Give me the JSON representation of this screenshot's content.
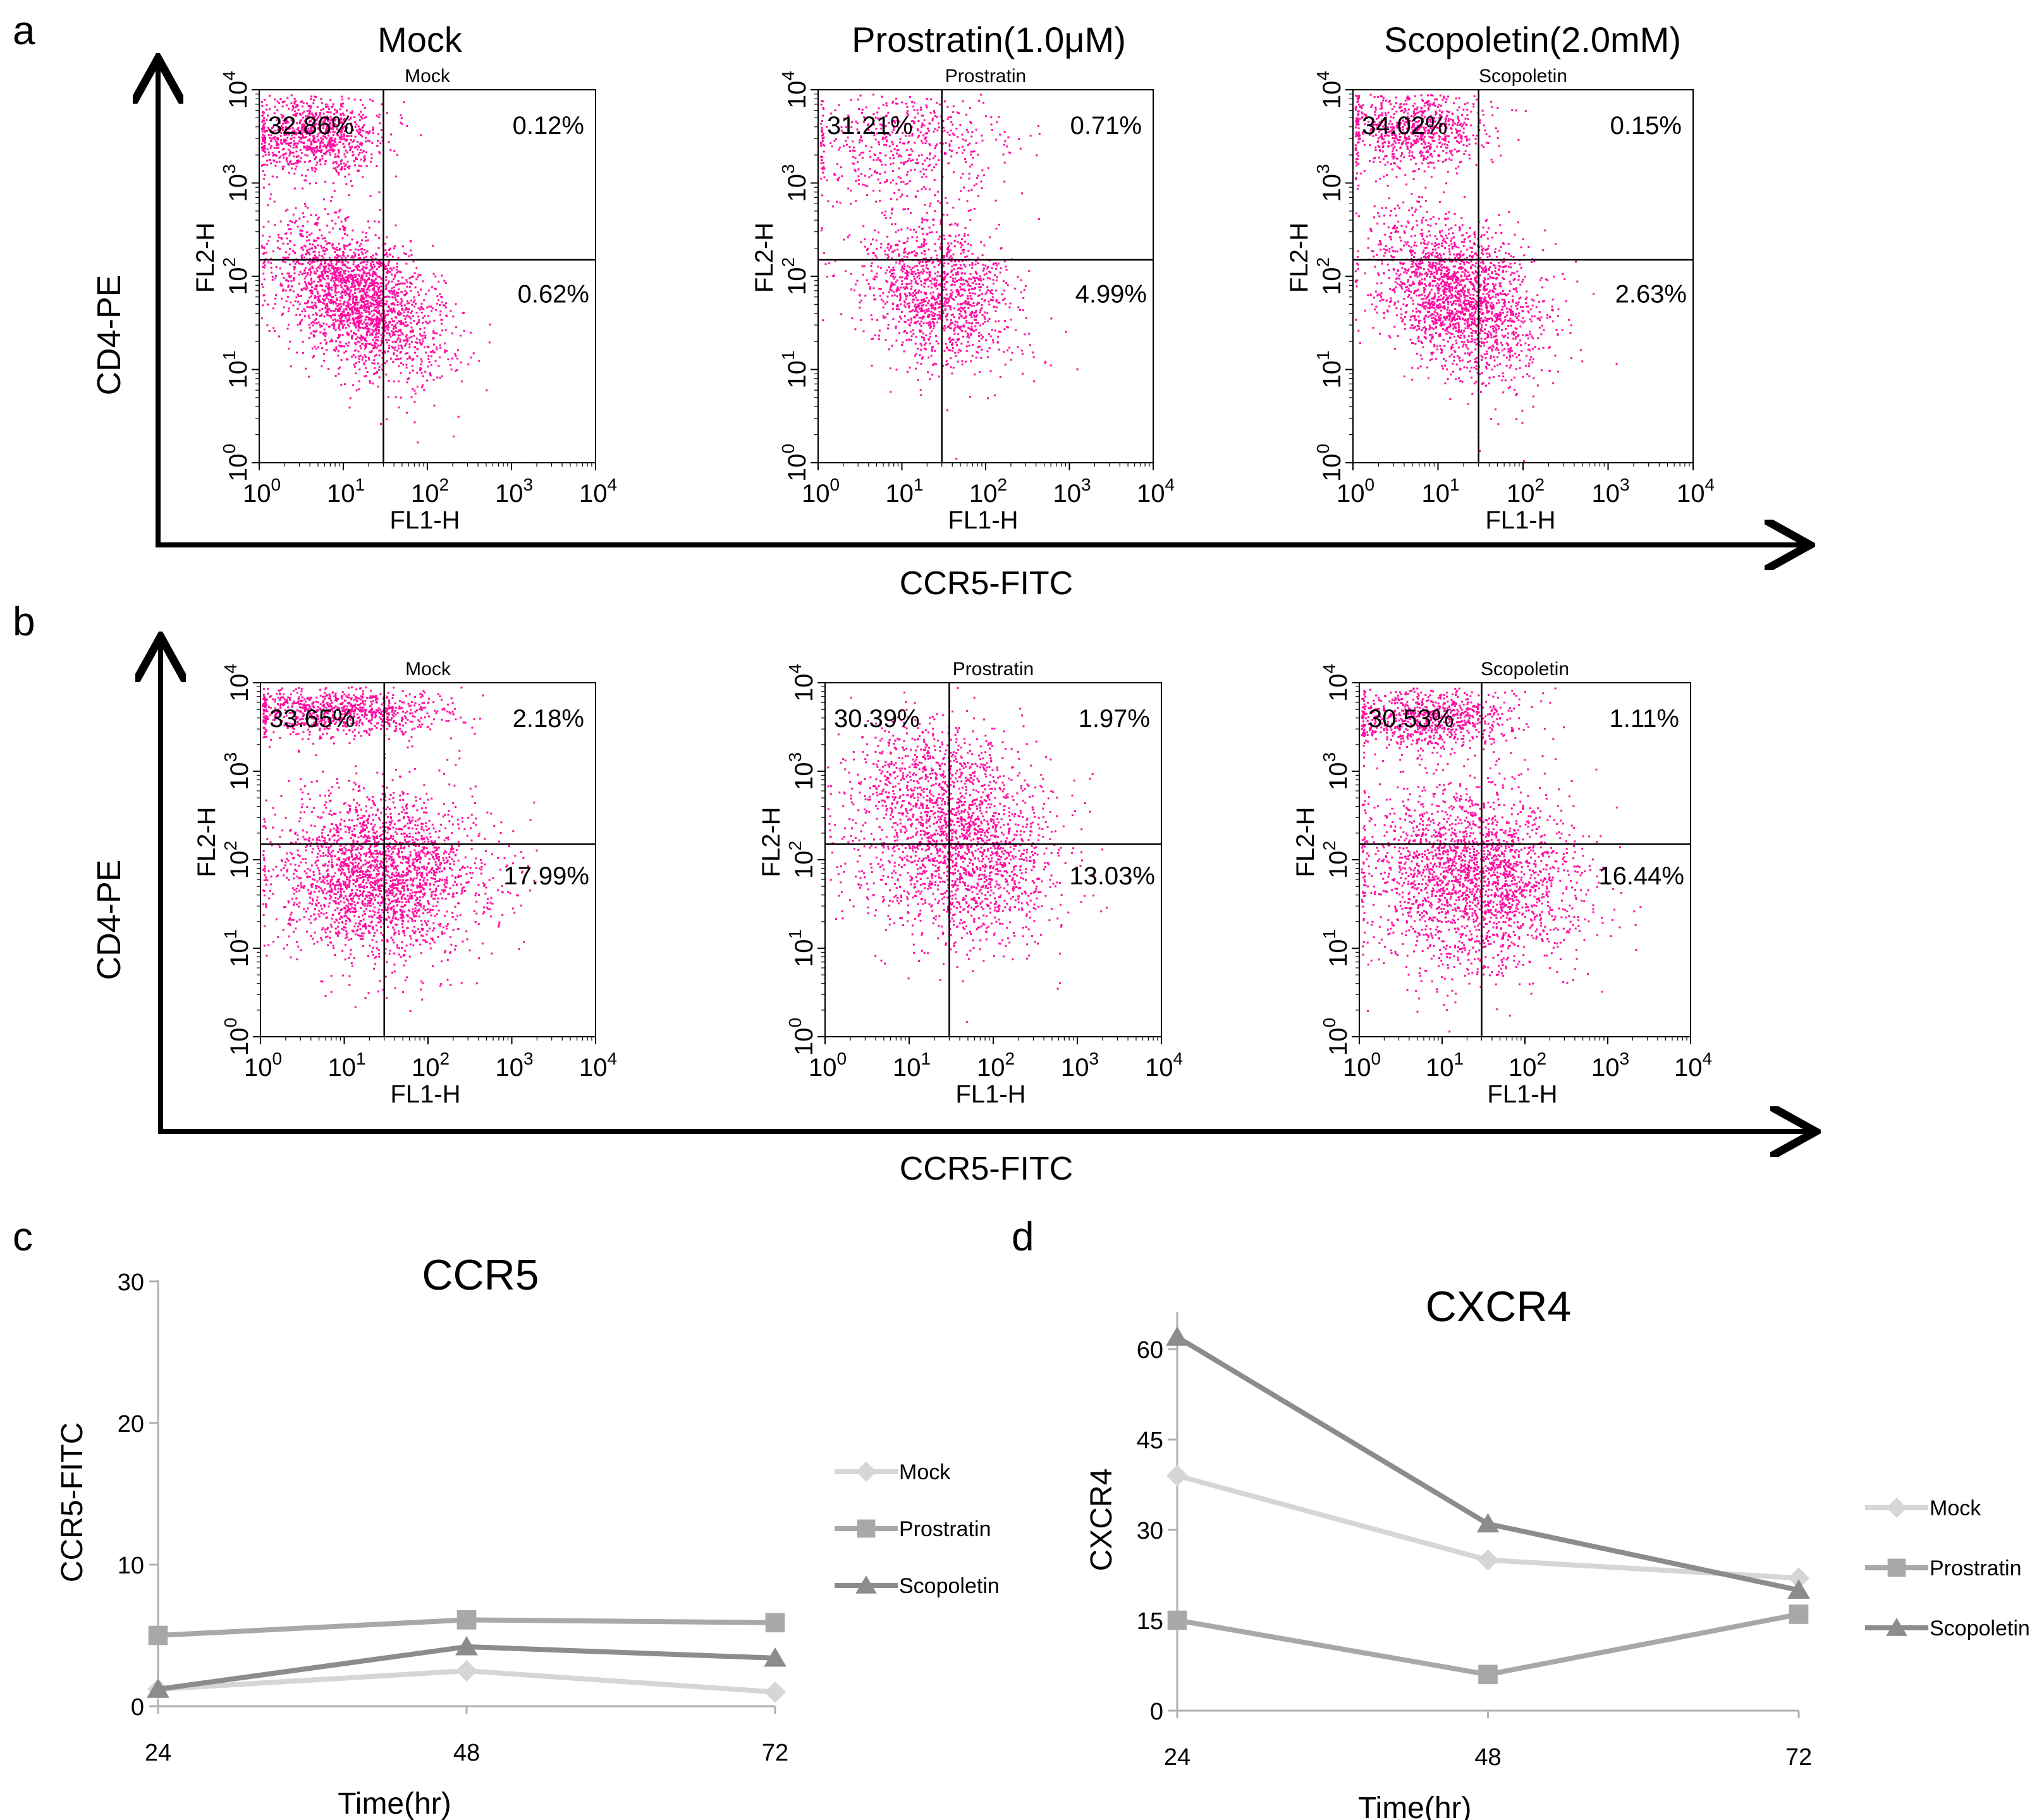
{
  "figure": {
    "panel_letters": [
      "a",
      "b",
      "c",
      "d"
    ],
    "column_titles": [
      "Mock",
      "Prostratin(1.0μM)",
      "Scopoletin(2.0mM)"
    ],
    "flow_y_axis_label": "CD4-PE",
    "flow_x_axis_label": "CCR5-FITC",
    "dot_color": "#ff0aa0"
  },
  "chart_data": [
    {
      "type": "scatter",
      "panel": "a",
      "subplot_title": "Mock",
      "xlabel": "FL1-H",
      "ylabel": "FL2-H",
      "scale": "log",
      "xlim": [
        1,
        10000
      ],
      "ylim": [
        1,
        10000
      ],
      "gate": {
        "x": 30,
        "y": 150
      },
      "quadrant_percent": {
        "upper_left": "32.86%",
        "upper_right": "0.12%",
        "lower_right": "0.62%"
      }
    },
    {
      "type": "scatter",
      "panel": "a",
      "subplot_title": "Prostratin",
      "xlabel": "FL1-H",
      "ylabel": "FL2-H",
      "scale": "log",
      "xlim": [
        1,
        10000
      ],
      "ylim": [
        1,
        10000
      ],
      "gate": {
        "x": 30,
        "y": 150
      },
      "quadrant_percent": {
        "upper_left": "31.21%",
        "upper_right": "0.71%",
        "lower_right": "4.99%"
      }
    },
    {
      "type": "scatter",
      "panel": "a",
      "subplot_title": "Scopoletin",
      "xlabel": "FL1-H",
      "ylabel": "FL2-H",
      "scale": "log",
      "xlim": [
        1,
        10000
      ],
      "ylim": [
        1,
        10000
      ],
      "gate": {
        "x": 30,
        "y": 150
      },
      "quadrant_percent": {
        "upper_left": "34.02%",
        "upper_right": "0.15%",
        "lower_right": "2.63%"
      }
    },
    {
      "type": "scatter",
      "panel": "b",
      "subplot_title": "Mock",
      "xlabel": "FL1-H",
      "ylabel": "FL2-H",
      "scale": "log",
      "xlim": [
        1,
        10000
      ],
      "ylim": [
        1,
        10000
      ],
      "gate": {
        "x": 30,
        "y": 150
      },
      "quadrant_percent": {
        "upper_left": "33.65%",
        "upper_right": "2.18%",
        "lower_right": "17.99%"
      }
    },
    {
      "type": "scatter",
      "panel": "b",
      "subplot_title": "Prostratin",
      "xlabel": "FL1-H",
      "ylabel": "FL2-H",
      "scale": "log",
      "xlim": [
        1,
        10000
      ],
      "ylim": [
        1,
        10000
      ],
      "gate": {
        "x": 30,
        "y": 150
      },
      "quadrant_percent": {
        "upper_left": "30.39%",
        "upper_right": "1.97%",
        "lower_right": "13.03%"
      }
    },
    {
      "type": "scatter",
      "panel": "b",
      "subplot_title": "Scopoletin",
      "xlabel": "FL1-H",
      "ylabel": "FL2-H",
      "scale": "log",
      "xlim": [
        1,
        10000
      ],
      "ylim": [
        1,
        10000
      ],
      "gate": {
        "x": 30,
        "y": 150
      },
      "quadrant_percent": {
        "upper_left": "30.53%",
        "upper_right": "1.11%",
        "lower_right": "16.44%"
      }
    },
    {
      "type": "line",
      "panel": "c",
      "title": "CCR5",
      "xlabel": "Time(hr)",
      "ylabel": "CCR5-FITC",
      "x": [
        24,
        48,
        72
      ],
      "ylim": [
        0,
        30
      ],
      "yticks": [
        0,
        10,
        20,
        30
      ],
      "series": [
        {
          "name": "Mock",
          "marker": "diamond",
          "color": "#d6d6d6",
          "values": [
            1.2,
            2.5,
            1.0
          ]
        },
        {
          "name": "Prostratin",
          "marker": "square",
          "color": "#a8a8a8",
          "values": [
            5.0,
            6.1,
            5.9
          ]
        },
        {
          "name": "Scopoletin",
          "marker": "triangle",
          "color": "#8c8c8c",
          "values": [
            1.2,
            4.2,
            3.4
          ]
        }
      ]
    },
    {
      "type": "line",
      "panel": "d",
      "title": "CXCR4",
      "xlabel": "Time(hr)",
      "ylabel": "CXCR4",
      "x": [
        24,
        48,
        72
      ],
      "ylim": [
        0,
        66
      ],
      "yticks": [
        0,
        15,
        30,
        45,
        60
      ],
      "series": [
        {
          "name": "Mock",
          "marker": "diamond",
          "color": "#d6d6d6",
          "values": [
            39,
            25,
            22
          ]
        },
        {
          "name": "Prostratin",
          "marker": "square",
          "color": "#a8a8a8",
          "values": [
            15,
            6,
            16
          ]
        },
        {
          "name": "Scopoletin",
          "marker": "triangle",
          "color": "#8c8c8c",
          "values": [
            62,
            31,
            20
          ]
        }
      ]
    }
  ]
}
